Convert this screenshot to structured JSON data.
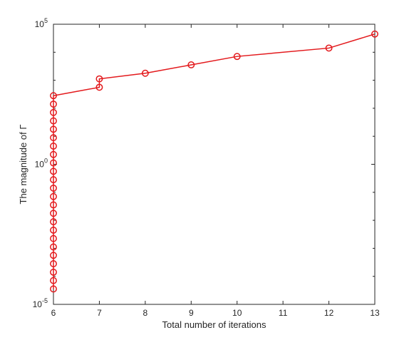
{
  "chart_data": {
    "type": "line",
    "title": "",
    "xlabel": "Total number of iterations",
    "ylabel": "The magnitude of Γ",
    "xlim": [
      6,
      13
    ],
    "ylim": [
      1e-05,
      100000
    ],
    "yscale": "log",
    "grid": false,
    "legend": "none",
    "xticks": [
      6,
      7,
      8,
      9,
      10,
      11,
      12,
      13
    ],
    "yticks": [
      {
        "value": 1e-05,
        "base": "10",
        "exp": "-5"
      },
      {
        "value": 1,
        "base": "10",
        "exp": "0"
      },
      {
        "value": 100000,
        "base": "10",
        "exp": "5"
      }
    ],
    "series": [
      {
        "color": "#e3191c",
        "marker": "circle",
        "points": [
          {
            "x": 6,
            "y": 3.55e-05
          },
          {
            "x": 6,
            "y": 7.08e-05
          },
          {
            "x": 6,
            "y": 0.000141
          },
          {
            "x": 6,
            "y": 0.000282
          },
          {
            "x": 6,
            "y": 0.000562
          },
          {
            "x": 6,
            "y": 0.00112
          },
          {
            "x": 6,
            "y": 0.00224
          },
          {
            "x": 6,
            "y": 0.00447
          },
          {
            "x": 6,
            "y": 0.00891
          },
          {
            "x": 6,
            "y": 0.0178
          },
          {
            "x": 6,
            "y": 0.0355
          },
          {
            "x": 6,
            "y": 0.0708
          },
          {
            "x": 6,
            "y": 0.141
          },
          {
            "x": 6,
            "y": 0.282
          },
          {
            "x": 6,
            "y": 0.562
          },
          {
            "x": 6,
            "y": 1.12
          },
          {
            "x": 6,
            "y": 2.24
          },
          {
            "x": 6,
            "y": 4.47
          },
          {
            "x": 6,
            "y": 8.91
          },
          {
            "x": 6,
            "y": 17.8
          },
          {
            "x": 6,
            "y": 35.5
          },
          {
            "x": 6,
            "y": 70.8
          },
          {
            "x": 6,
            "y": 141
          },
          {
            "x": 6,
            "y": 282
          },
          {
            "x": 7,
            "y": 562
          },
          {
            "x": 7,
            "y": 1120
          },
          {
            "x": 8,
            "y": 1780
          },
          {
            "x": 9,
            "y": 3550
          },
          {
            "x": 10,
            "y": 7080
          },
          {
            "x": 12,
            "y": 14100
          },
          {
            "x": 13,
            "y": 44700
          }
        ]
      }
    ]
  }
}
